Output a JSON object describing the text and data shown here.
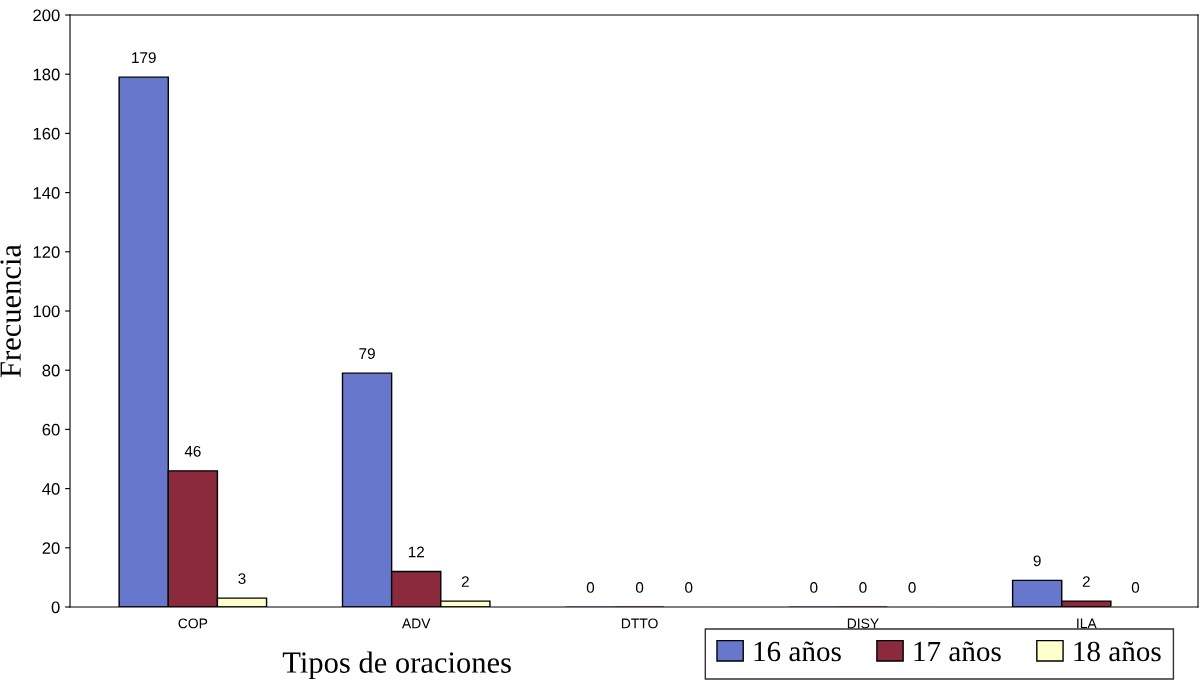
{
  "chart_data": {
    "type": "bar",
    "xlabel": "Tipos de oraciones",
    "ylabel": "Frecuencia",
    "categories": [
      "COP",
      "ADV",
      "DTTO",
      "DISY",
      "ILA"
    ],
    "series": [
      {
        "name": "16 años",
        "color": "#6677cc",
        "values": [
          179,
          79,
          0,
          0,
          9
        ]
      },
      {
        "name": "17 años",
        "color": "#8b2a3c",
        "values": [
          46,
          12,
          0,
          0,
          2
        ]
      },
      {
        "name": "18 años",
        "color": "#ffffcc",
        "values": [
          3,
          2,
          0,
          0,
          0
        ]
      }
    ],
    "ylim": [
      0,
      200
    ],
    "yticks": [
      0,
      20,
      40,
      60,
      80,
      100,
      120,
      140,
      160,
      180,
      200
    ],
    "data_labels": true,
    "grid": false,
    "legend": "bottom right"
  }
}
